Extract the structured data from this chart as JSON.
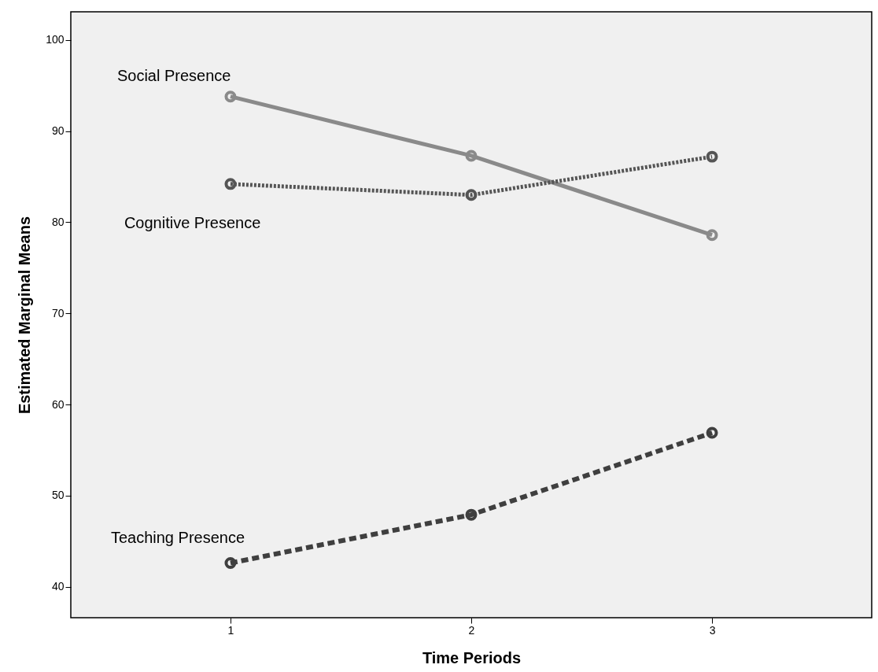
{
  "chart_data": {
    "type": "line",
    "xlabel": "Time Periods",
    "ylabel": "Estimated Marginal Means",
    "x": [
      1,
      2,
      3
    ],
    "xlim": [
      0.337,
      3.663
    ],
    "xticks": [
      1,
      2,
      3
    ],
    "ylim": [
      36.6,
      103.1
    ],
    "yticks": [
      40,
      50,
      60,
      70,
      80,
      90,
      100
    ],
    "legend": false,
    "marker": "circle",
    "series": [
      {
        "name": "Social Presence",
        "color": "#8a8a8a",
        "line_style": "solid",
        "values": [
          93.8,
          87.3,
          78.6
        ]
      },
      {
        "name": "Cognitive Presence",
        "color": "#555555",
        "line_style": "dotted",
        "values": [
          84.2,
          83.0,
          87.2
        ]
      },
      {
        "name": "Teaching Presence",
        "color": "#3f3f3f",
        "line_style": "dashed",
        "values": [
          42.6,
          47.9,
          56.9
        ]
      }
    ]
  }
}
